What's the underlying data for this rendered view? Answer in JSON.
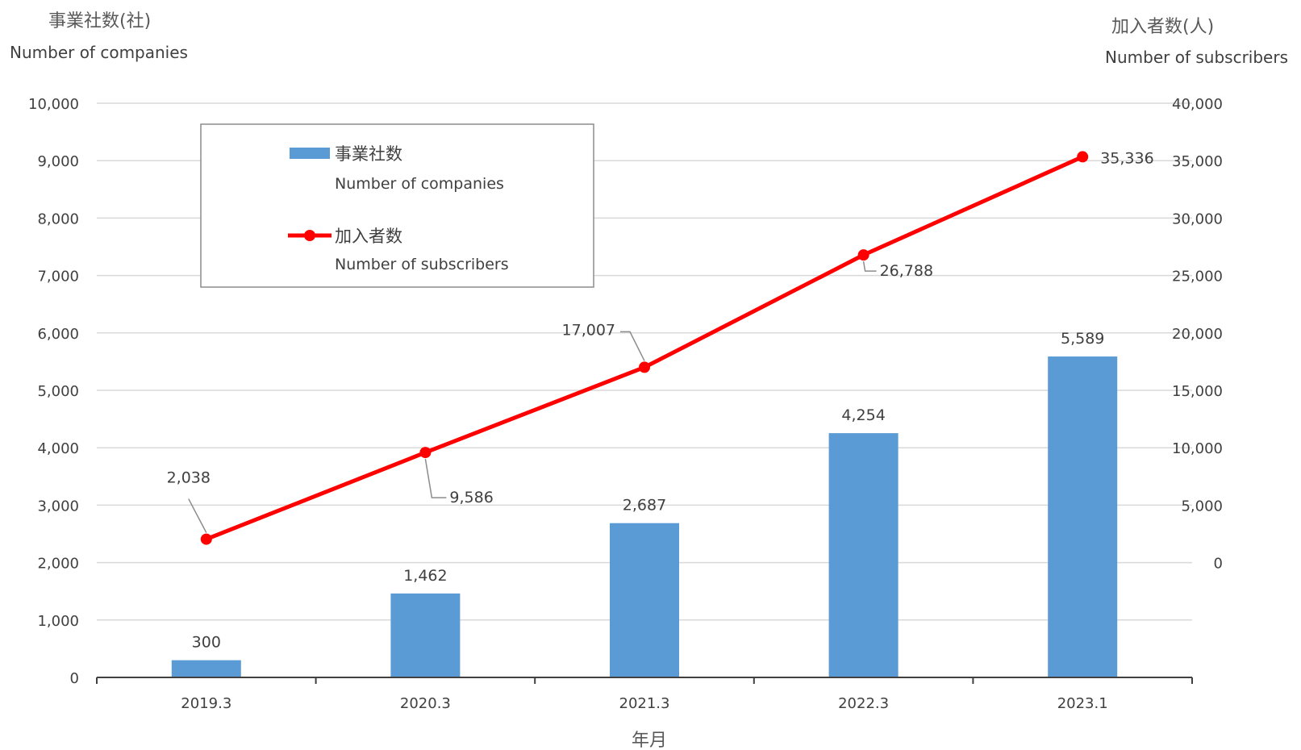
{
  "chart_data": {
    "type": "bar+line",
    "categories": [
      "2019.3",
      "2020.3",
      "2021.3",
      "2022.3",
      "2023.1"
    ],
    "xlabel": "年月",
    "left_axis": {
      "title_jp": "事業社数(社)",
      "title_en": "Number of companies",
      "range": [
        0,
        10000
      ],
      "ticks": [
        "0",
        "1,000",
        "2,000",
        "3,000",
        "4,000",
        "5,000",
        "6,000",
        "7,000",
        "8,000",
        "9,000",
        "10,000"
      ]
    },
    "right_axis": {
      "title_jp": "加入者数(人)",
      "title_en": "Number of subscribers",
      "range": [
        -10000,
        40000
      ],
      "ticks": [
        "0",
        "5,000",
        "10,000",
        "15,000",
        "20,000",
        "25,000",
        "30,000",
        "35,000",
        "40,000"
      ]
    },
    "grid": true,
    "legend_position": "top-left",
    "series": [
      {
        "name_jp": "事業社数",
        "name_en": "Number of companies",
        "type": "bar",
        "axis": "left",
        "color": "#5B9BD5",
        "values": [
          300,
          1462,
          2687,
          4254,
          5589
        ],
        "labels": [
          "300",
          "1,462",
          "2,687",
          "4,254",
          "5,589"
        ]
      },
      {
        "name_jp": "加入者数",
        "name_en": "Number of subscribers",
        "type": "line",
        "axis": "right",
        "color": "#FF0000",
        "values": [
          2038,
          9586,
          17007,
          26788,
          35336
        ],
        "labels": [
          "2,038",
          "9,586",
          "17,007",
          "26,788",
          "35,336"
        ]
      }
    ]
  }
}
